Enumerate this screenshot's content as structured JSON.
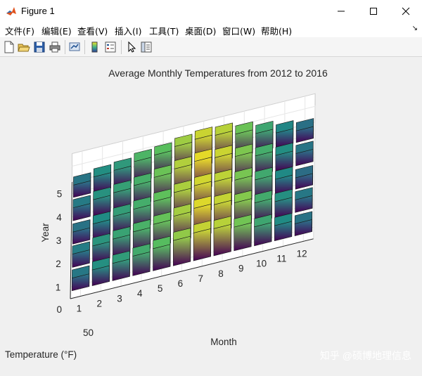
{
  "window": {
    "title": "Figure 1"
  },
  "menu": {
    "items": [
      "文件(F)",
      "编辑(E)",
      "查看(V)",
      "插入(I)",
      "工具(T)",
      "桌面(D)",
      "窗口(W)",
      "帮助(H)"
    ]
  },
  "toolbar": {
    "icons": [
      "new-figure-icon",
      "open-file-icon",
      "save-icon",
      "print-icon",
      "link-plot-icon",
      "insert-colorbar-icon",
      "insert-legend-icon",
      "select-pointer-icon",
      "property-inspector-icon"
    ]
  },
  "watermark": "知乎 @硕博地理信息",
  "chart_data": {
    "type": "bar3",
    "title": "Average Monthly Temperatures from 2012 to 2016",
    "xlabel": "Month",
    "ylabel": "Year",
    "zlabel": "Temperature (°F)",
    "x_ticks": [
      "1",
      "2",
      "3",
      "4",
      "5",
      "6",
      "7",
      "8",
      "9",
      "10",
      "11",
      "12"
    ],
    "y_ticks": [
      "1",
      "2",
      "3",
      "4",
      "5"
    ],
    "z_ticks": [
      "0",
      "50"
    ],
    "colormap": "viridis",
    "months": [
      1,
      2,
      3,
      4,
      5,
      6,
      7,
      8,
      9,
      10,
      11,
      12
    ],
    "years": [
      1,
      2,
      3,
      4,
      5
    ],
    "values": [
      [
        40,
        50,
        55,
        62,
        70,
        80,
        88,
        86,
        75,
        60,
        48,
        38
      ],
      [
        42,
        52,
        58,
        65,
        73,
        83,
        92,
        88,
        78,
        62,
        50,
        40
      ],
      [
        38,
        48,
        56,
        63,
        72,
        84,
        90,
        87,
        76,
        61,
        47,
        36
      ],
      [
        41,
        51,
        57,
        64,
        74,
        85,
        93,
        89,
        77,
        63,
        49,
        39
      ],
      [
        39,
        49,
        54,
        66,
        71,
        82,
        89,
        86,
        74,
        60,
        46,
        37
      ]
    ]
  }
}
